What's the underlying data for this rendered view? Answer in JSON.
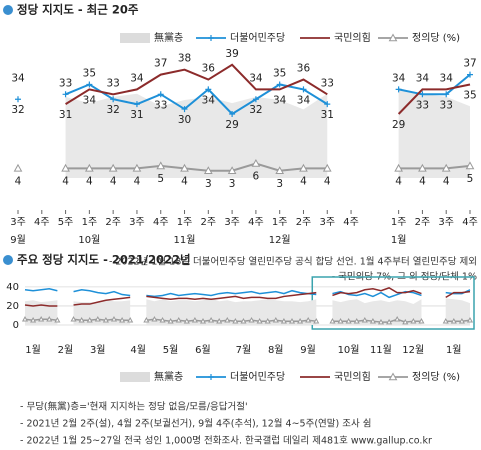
{
  "chart_data": [
    {
      "type": "line",
      "title": "정당 지지도 - 최근 20주",
      "categories": [
        "3주",
        "4주",
        "5주",
        "1주",
        "2주",
        "3주",
        "4주",
        "1주",
        "2주",
        "3주",
        "4주",
        "1주",
        "2주",
        "3주",
        "4주",
        null,
        "1주",
        "2주",
        "3주",
        "4주"
      ],
      "category_groups": [
        "9월",
        null,
        null,
        "10월",
        null,
        null,
        null,
        "11월",
        null,
        null,
        null,
        "12월",
        null,
        null,
        null,
        null,
        "1월",
        null,
        null,
        null
      ],
      "series": [
        {
          "name": "無黨층",
          "type": "area",
          "color": "#e8e8e8",
          "ylim": [
            0,
            41
          ],
          "values": [
            27,
            null,
            26,
            24,
            26,
            27,
            23,
            25,
            26,
            24,
            26,
            25,
            22,
            27,
            null,
            null,
            28,
            27,
            26,
            23
          ]
        },
        {
          "name": "더불어민주당",
          "color": "#1e90d8",
          "ylim": [
            16,
            42
          ],
          "values": [
            32,
            null,
            33,
            35,
            32,
            31,
            33,
            30,
            34,
            29,
            32,
            35,
            34,
            31,
            null,
            null,
            34,
            33,
            33,
            37
          ]
        },
        {
          "name": "국민의힘",
          "color": "#8c2b2b",
          "ylim": [
            16,
            42
          ],
          "values": [
            34,
            null,
            31,
            34,
            33,
            34,
            37,
            38,
            36,
            39,
            34,
            34,
            36,
            33,
            null,
            null,
            29,
            34,
            34,
            35
          ]
        },
        {
          "name": "정의당 (%)",
          "color": "#9a9a9a",
          "ylim": [
            0,
            53
          ],
          "values": [
            4,
            null,
            4,
            4,
            4,
            4,
            5,
            4,
            3,
            3,
            6,
            3,
            4,
            4,
            null,
            null,
            4,
            4,
            4,
            5
          ]
        }
      ],
      "notes": [
        "- 2022년 1월 18일 더불어민주당 열린민주당 공식 합당 선언. 1월 4주부터 열린민주당 제외",
        "- 국민의당 7%, 그 외 정당/단체 1%"
      ]
    },
    {
      "type": "line",
      "title": "주요 정당 지지도 - 2021/2022년",
      "categories": [
        "1월",
        null,
        null,
        null,
        "2월",
        null,
        null,
        null,
        "3월",
        null,
        null,
        null,
        null,
        "4월",
        null,
        null,
        null,
        "5월",
        null,
        null,
        null,
        "6월",
        null,
        null,
        null,
        null,
        "7월",
        null,
        null,
        null,
        "8월",
        null,
        null,
        null,
        "9월",
        null,
        null,
        null,
        null,
        "10월",
        null,
        null,
        null,
        "11월",
        null,
        null,
        null,
        "12월",
        null,
        null,
        null,
        null,
        "1월",
        null,
        null,
        null
      ],
      "ylim": [
        0,
        42
      ],
      "yticks": [
        0,
        20,
        40
      ],
      "grid": true,
      "series": [
        {
          "name": "無黨층",
          "type": "area",
          "color": "#e8e8e8",
          "values": [
            25,
            26,
            24,
            25,
            26,
            null,
            25,
            24,
            24,
            24,
            26,
            25,
            25,
            26,
            null,
            27,
            25,
            27,
            25,
            26,
            26,
            25,
            26,
            28,
            25,
            26,
            24,
            25,
            25,
            26,
            27,
            26,
            25,
            25,
            24,
            25,
            27,
            null,
            26,
            24,
            26,
            27,
            23,
            25,
            26,
            24,
            26,
            25,
            22,
            27,
            null,
            null,
            28,
            27,
            26,
            23
          ]
        },
        {
          "name": "더불어민주당",
          "color": "#1e90d8",
          "values": [
            37,
            36,
            37,
            38,
            36,
            null,
            35,
            37,
            36,
            34,
            33,
            35,
            32,
            31,
            null,
            31,
            30,
            31,
            33,
            31,
            32,
            33,
            32,
            31,
            33,
            34,
            33,
            34,
            35,
            33,
            34,
            35,
            33,
            36,
            34,
            33,
            32,
            null,
            33,
            35,
            32,
            31,
            33,
            30,
            34,
            29,
            32,
            35,
            34,
            31,
            null,
            null,
            34,
            33,
            33,
            37
          ]
        },
        {
          "name": "국민의힘",
          "color": "#8c2b2b",
          "values": [
            21,
            20,
            21,
            20,
            20,
            null,
            21,
            22,
            22,
            24,
            26,
            27,
            28,
            29,
            null,
            30,
            29,
            28,
            27,
            28,
            28,
            27,
            28,
            27,
            28,
            29,
            30,
            28,
            29,
            29,
            28,
            28,
            30,
            31,
            32,
            33,
            34,
            null,
            31,
            34,
            33,
            34,
            37,
            38,
            36,
            39,
            34,
            34,
            36,
            33,
            null,
            null,
            29,
            34,
            34,
            35
          ]
        },
        {
          "name": "정의당 (%)",
          "color": "#9a9a9a",
          "values": [
            6,
            5,
            6,
            6,
            5,
            null,
            6,
            5,
            5,
            6,
            5,
            6,
            5,
            5,
            null,
            5,
            6,
            5,
            4,
            5,
            4,
            5,
            4,
            5,
            4,
            5,
            4,
            4,
            5,
            4,
            4,
            5,
            4,
            4,
            4,
            5,
            4,
            null,
            4,
            4,
            4,
            4,
            5,
            4,
            3,
            3,
            6,
            3,
            4,
            4,
            null,
            null,
            4,
            4,
            4,
            5
          ]
        }
      ],
      "notes": [
        "- 무당(無黨)층='현재 지지하는 정당 없음/모름/응답거절'",
        "- 2021년 2월 2주(설), 4월 2주(보궐선거), 9월 4주(추석), 12월 4~5주(연말) 조사 쉼",
        "- 2022년 1월 25~27일 전국 성인 1,000명 전화조사. 한국갤럽 데일리 제481호 www.gallup.co.kr"
      ]
    }
  ]
}
